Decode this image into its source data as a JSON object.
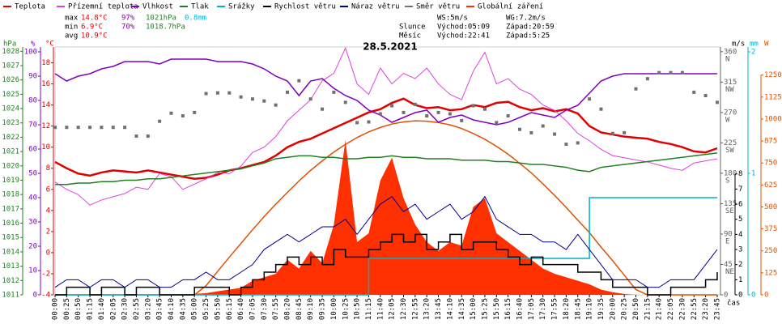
{
  "chart_data": {
    "type": "line",
    "title": "28.5.2021",
    "x_label": "čas",
    "categories": [
      "00:00",
      "00:25",
      "00:50",
      "01:15",
      "01:40",
      "02:05",
      "02:30",
      "02:55",
      "03:20",
      "03:45",
      "04:10",
      "04:35",
      "05:00",
      "05:25",
      "05:50",
      "06:15",
      "06:40",
      "07:05",
      "07:30",
      "07:55",
      "08:20",
      "08:45",
      "09:10",
      "09:35",
      "10:00",
      "10:25",
      "10:50",
      "11:15",
      "11:40",
      "12:05",
      "12:30",
      "12:55",
      "13:20",
      "13:45",
      "14:10",
      "14:35",
      "15:00",
      "15:25",
      "15:50",
      "16:15",
      "16:40",
      "17:05",
      "17:30",
      "17:55",
      "18:20",
      "18:45",
      "19:10",
      "19:35",
      "20:00",
      "20:25",
      "20:50",
      "21:15",
      "21:40",
      "22:05",
      "22:30",
      "22:55",
      "23:20",
      "23:45"
    ],
    "axes": {
      "hpa": {
        "label": "hPa",
        "color": "#208020",
        "lim": [
          1011,
          1028.3
        ],
        "ticks": [
          1011,
          1012,
          1013,
          1014,
          1015,
          1016,
          1017,
          1018,
          1019,
          1020,
          1021,
          1022,
          1023,
          1024,
          1025,
          1026,
          1027,
          1028
        ]
      },
      "pct": {
        "label": "%",
        "color": "#8000c0",
        "lim": [
          0,
          102
        ],
        "ticks": [
          0,
          10,
          20,
          30,
          40,
          50,
          60,
          70,
          80,
          90,
          100
        ]
      },
      "temp": {
        "label": "°C",
        "color": "#e00000",
        "lim": [
          -4,
          19.5
        ],
        "ticks": [
          -4,
          -2,
          0,
          2,
          4,
          6,
          8,
          10,
          12,
          14,
          16,
          18
        ]
      },
      "dir": {
        "color": "#606060",
        "lim": [
          0,
          367
        ],
        "ticks": [
          0,
          45,
          90,
          135,
          180,
          225,
          270,
          315,
          360
        ],
        "tick_letters": [
          null,
          "NE",
          "E",
          "SE",
          "S",
          "SW",
          "W",
          "NW",
          "N"
        ]
      },
      "wind": {
        "label": "m/s",
        "color": "#000000",
        "lim": [
          0,
          16.4
        ],
        "ticks": [
          0,
          1,
          2,
          3,
          4,
          5,
          6,
          7,
          8
        ]
      },
      "rain": {
        "label": "mm",
        "color": "#00b0d0",
        "lim": [
          0,
          2.04
        ],
        "ticks": [
          0,
          1,
          2
        ]
      },
      "rad": {
        "label": "W",
        "color": "#e05000",
        "lim": [
          0,
          1410
        ],
        "ticks": [
          0,
          125,
          250,
          375,
          500,
          625,
          750,
          875,
          1000,
          1125,
          1250
        ]
      }
    },
    "series": [
      {
        "name": "Teplota",
        "color": "#e00000",
        "axis": "temp",
        "kind": "line",
        "width": 2.5,
        "values": [
          8.6,
          8.0,
          7.5,
          7.3,
          7.6,
          7.8,
          7.7,
          7.6,
          7.8,
          7.6,
          7.4,
          7.2,
          7.0,
          7.1,
          7.4,
          7.8,
          8.0,
          8.3,
          8.6,
          9.2,
          10.0,
          10.5,
          10.8,
          11.3,
          11.8,
          12.3,
          12.8,
          13.3,
          13.6,
          14.2,
          14.6,
          14.0,
          13.7,
          13.8,
          13.5,
          13.6,
          14.0,
          13.8,
          14.2,
          14.3,
          13.8,
          13.5,
          13.7,
          13.4,
          13.6,
          13.2,
          12.0,
          11.4,
          11.2,
          11.0,
          10.9,
          10.8,
          10.5,
          10.3,
          10.0,
          9.6,
          9.5,
          9.9
        ]
      },
      {
        "name": "Přízemní teplota",
        "color": "#e040e0",
        "axis": "temp",
        "kind": "line",
        "width": 1,
        "values": [
          6.7,
          6.0,
          5.5,
          4.5,
          5.0,
          5.3,
          5.6,
          6.2,
          6.0,
          7.5,
          7.2,
          6.0,
          6.5,
          7.0,
          7.6,
          7.5,
          8.2,
          9.5,
          10.0,
          11.0,
          12.5,
          13.5,
          14.5,
          16.3,
          17.0,
          19.4,
          16.0,
          15.0,
          17.5,
          16.0,
          17.0,
          16.5,
          17.5,
          16.0,
          15.0,
          14.5,
          17.2,
          19.0,
          16.0,
          16.5,
          15.5,
          15.0,
          14.0,
          13.5,
          12.5,
          11.3,
          10.6,
          9.8,
          9.2,
          9.0,
          8.8,
          8.6,
          8.3,
          8.0,
          7.8,
          8.5,
          8.7,
          8.9
        ]
      },
      {
        "name": "Vlhkost",
        "color": "#8000c0",
        "axis": "pct",
        "kind": "line",
        "width": 1.5,
        "values": [
          91,
          88,
          90,
          91,
          93,
          94,
          96,
          96,
          96,
          95,
          97,
          97,
          97,
          97,
          96,
          96,
          96,
          95,
          93,
          90,
          88,
          82,
          88,
          89,
          85,
          82,
          80,
          76,
          74,
          71,
          73,
          75,
          76,
          71,
          73,
          74,
          72,
          71,
          70,
          71,
          73,
          75,
          74,
          73,
          76,
          78,
          83,
          88,
          90,
          91,
          91,
          91,
          91,
          91,
          91,
          91,
          91,
          91
        ]
      },
      {
        "name": "Tlak",
        "color": "#208020",
        "axis": "hpa",
        "kind": "line",
        "width": 1.5,
        "values": [
          1018.7,
          1018.7,
          1018.8,
          1018.8,
          1018.9,
          1018.9,
          1019.0,
          1019.0,
          1019.1,
          1019.1,
          1019.2,
          1019.3,
          1019.4,
          1019.5,
          1019.6,
          1019.7,
          1019.8,
          1020.0,
          1020.2,
          1020.5,
          1020.6,
          1020.7,
          1020.7,
          1020.6,
          1020.6,
          1020.5,
          1020.5,
          1020.6,
          1020.6,
          1020.7,
          1020.6,
          1020.6,
          1020.5,
          1020.5,
          1020.5,
          1020.4,
          1020.4,
          1020.4,
          1020.3,
          1020.3,
          1020.2,
          1020.1,
          1020.1,
          1020.0,
          1019.9,
          1019.7,
          1019.6,
          1019.9,
          1020.0,
          1020.1,
          1020.2,
          1020.3,
          1020.4,
          1020.5,
          1020.6,
          1020.7,
          1020.8,
          1020.9
        ]
      },
      {
        "name": "Srážky",
        "color": "#00b0d0",
        "axis": "rain",
        "kind": "step",
        "width": 1.5,
        "values": [
          0,
          0,
          0,
          0,
          0,
          0,
          0,
          0,
          0,
          0,
          0,
          0,
          0,
          0,
          0,
          0,
          0,
          0,
          0,
          0,
          0,
          0,
          0,
          0,
          0,
          0,
          0,
          0.3,
          0.3,
          0.3,
          0.3,
          0.3,
          0.3,
          0.3,
          0.3,
          0.3,
          0.3,
          0.3,
          0.3,
          0.3,
          0.3,
          0.3,
          0.3,
          0.3,
          0.3,
          0.3,
          0.8,
          0.8,
          0.8,
          0.8,
          0.8,
          0.8,
          0.8,
          0.8,
          0.8,
          0.8,
          0.8,
          0.8
        ]
      },
      {
        "name": "Rychlost větru",
        "color": "#000000",
        "axis": "wind",
        "kind": "step",
        "width": 1.5,
        "values": [
          0,
          0.5,
          0.5,
          0,
          0.5,
          0.5,
          0,
          0.5,
          0.5,
          0,
          0,
          0,
          0.5,
          0.5,
          0.5,
          0,
          0.5,
          1,
          1.5,
          2,
          2.5,
          2,
          2.5,
          2,
          3,
          2.5,
          2.5,
          3,
          3.5,
          4,
          3.5,
          4,
          3,
          3.5,
          4,
          3,
          3.5,
          3.5,
          3,
          2.5,
          2,
          2.5,
          2,
          2,
          2,
          1.5,
          1.5,
          1,
          0.5,
          0.5,
          0.5,
          0,
          0,
          0.5,
          0.5,
          0.5,
          1,
          1.5
        ]
      },
      {
        "name": "Náraz větru",
        "color": "#000090",
        "axis": "wind",
        "kind": "line",
        "width": 1,
        "values": [
          0.5,
          1,
          1,
          0.5,
          1,
          1,
          0.5,
          1,
          1,
          0.5,
          0.5,
          1,
          1,
          1.5,
          1,
          1,
          1.5,
          2,
          3,
          3.5,
          4,
          3.5,
          4,
          4.5,
          4.5,
          5,
          4,
          5,
          6,
          6.5,
          5.5,
          6,
          5,
          5.5,
          6,
          5,
          5.5,
          6.5,
          5,
          4.5,
          4,
          4,
          3.5,
          3.5,
          3,
          4,
          3,
          2,
          1,
          1,
          1,
          0.5,
          0.5,
          1,
          1,
          1,
          2,
          3
        ]
      },
      {
        "name": "Směr větru",
        "color": "#707070",
        "axis": "dir",
        "kind": "scatter",
        "values": [
          248,
          248,
          248,
          248,
          248,
          248,
          248,
          235,
          235,
          257,
          269,
          265,
          270,
          298,
          299,
          299,
          293,
          290,
          287,
          281,
          300,
          317,
          290,
          275,
          300,
          285,
          255,
          256,
          268,
          280,
          270,
          282,
          265,
          270,
          268,
          258,
          280,
          275,
          255,
          265,
          245,
          240,
          250,
          238,
          223,
          225,
          290,
          275,
          239,
          240,
          305,
          320,
          329,
          329,
          329,
          300,
          295,
          285
        ]
      },
      {
        "name": "Globální záření",
        "color": "#ff3000",
        "axis": "rad",
        "kind": "area",
        "values": [
          0,
          0,
          0,
          0,
          0,
          0,
          0,
          0,
          0,
          0,
          0,
          0,
          5,
          10,
          20,
          30,
          40,
          80,
          100,
          120,
          200,
          150,
          250,
          180,
          400,
          880,
          300,
          350,
          650,
          780,
          550,
          400,
          300,
          250,
          300,
          280,
          500,
          550,
          350,
          300,
          250,
          200,
          150,
          120,
          100,
          80,
          60,
          30,
          15,
          5,
          0,
          0,
          0,
          0,
          0,
          0,
          0,
          0
        ]
      }
    ],
    "clear_sky": {
      "color": "#e05000",
      "axis": "rad",
      "values": [
        0,
        0,
        0,
        0,
        0,
        0,
        0,
        0,
        0,
        0,
        0,
        0,
        0,
        52,
        134,
        214,
        292,
        370,
        445,
        516,
        583,
        648,
        708,
        762,
        812,
        856,
        895,
        927,
        952,
        972,
        984,
        990,
        988,
        980,
        967,
        946,
        918,
        885,
        845,
        800,
        748,
        694,
        631,
        566,
        497,
        425,
        354,
        272,
        194,
        112,
        30,
        0,
        0,
        0,
        0,
        0,
        0,
        0
      ]
    },
    "stats": [
      [
        "max",
        "14.8°C",
        "97%",
        "1021hPa",
        "0.8mm"
      ],
      [
        "min",
        "6.9°C",
        "70%",
        "1018.7hPa"
      ],
      [
        "avg",
        "10.9°C"
      ]
    ],
    "info": [
      [
        null,
        "WS:5m/s",
        "WG:7.2m/s"
      ],
      [
        "Slunce",
        "Východ:05:09",
        "Západ:20:59"
      ],
      [
        "Měsíc",
        "Východ:22:41",
        "Západ:5:25"
      ]
    ]
  }
}
